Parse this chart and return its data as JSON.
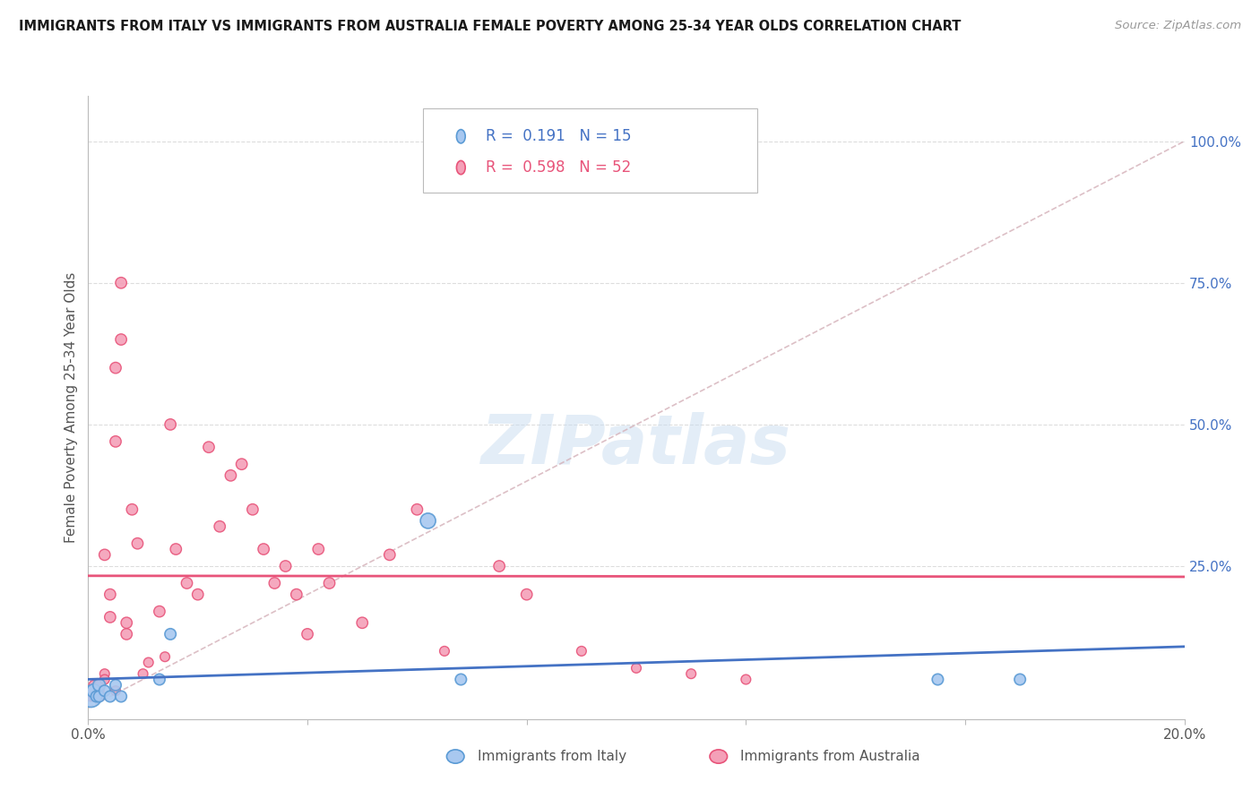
{
  "title": "IMMIGRANTS FROM ITALY VS IMMIGRANTS FROM AUSTRALIA FEMALE POVERTY AMONG 25-34 YEAR OLDS CORRELATION CHART",
  "source": "Source: ZipAtlas.com",
  "ylabel": "Female Poverty Among 25-34 Year Olds",
  "legend_italy": "Immigrants from Italy",
  "legend_australia": "Immigrants from Australia",
  "R_italy": "0.191",
  "N_italy": "15",
  "R_australia": "0.598",
  "N_australia": "52",
  "xlim": [
    0.0,
    0.2
  ],
  "ylim": [
    -0.02,
    1.08
  ],
  "yticks_right": [
    0.25,
    0.5,
    0.75,
    1.0
  ],
  "ytick_labels_right": [
    "25.0%",
    "50.0%",
    "75.0%",
    "100.0%"
  ],
  "color_italy_fill": "#A8C8F0",
  "color_italy_edge": "#5B9BD5",
  "color_australia_fill": "#F4A0B8",
  "color_australia_edge": "#E8547A",
  "color_italy_line": "#4472C4",
  "color_australia_line": "#E8547A",
  "color_diag": "#D4B0B8",
  "background": "#FFFFFF",
  "watermark": "ZIPatlas",
  "italy_x": [
    0.0005,
    0.001,
    0.0015,
    0.002,
    0.002,
    0.003,
    0.004,
    0.005,
    0.006,
    0.013,
    0.015,
    0.062,
    0.068,
    0.155,
    0.17
  ],
  "italy_y": [
    0.02,
    0.03,
    0.02,
    0.04,
    0.02,
    0.03,
    0.02,
    0.04,
    0.02,
    0.05,
    0.13,
    0.33,
    0.05,
    0.05,
    0.05
  ],
  "italy_sizes": [
    300,
    120,
    80,
    100,
    80,
    80,
    80,
    80,
    80,
    80,
    80,
    150,
    80,
    80,
    80
  ],
  "australia_x": [
    0.0005,
    0.001,
    0.001,
    0.001,
    0.002,
    0.002,
    0.002,
    0.003,
    0.003,
    0.003,
    0.004,
    0.004,
    0.005,
    0.005,
    0.005,
    0.006,
    0.006,
    0.007,
    0.007,
    0.008,
    0.009,
    0.01,
    0.011,
    0.013,
    0.014,
    0.015,
    0.016,
    0.018,
    0.02,
    0.022,
    0.024,
    0.026,
    0.028,
    0.03,
    0.032,
    0.034,
    0.036,
    0.038,
    0.04,
    0.042,
    0.044,
    0.05,
    0.055,
    0.06,
    0.065,
    0.07,
    0.075,
    0.08,
    0.09,
    0.1,
    0.11,
    0.12
  ],
  "australia_y": [
    0.02,
    0.03,
    0.04,
    0.02,
    0.03,
    0.04,
    0.02,
    0.27,
    0.06,
    0.05,
    0.16,
    0.2,
    0.6,
    0.47,
    0.03,
    0.75,
    0.65,
    0.13,
    0.15,
    0.35,
    0.29,
    0.06,
    0.08,
    0.17,
    0.09,
    0.5,
    0.28,
    0.22,
    0.2,
    0.46,
    0.32,
    0.41,
    0.43,
    0.35,
    0.28,
    0.22,
    0.25,
    0.2,
    0.13,
    0.28,
    0.22,
    0.15,
    0.27,
    0.35,
    0.1,
    0.99,
    0.25,
    0.2,
    0.1,
    0.07,
    0.06,
    0.05
  ],
  "australia_sizes": [
    60,
    60,
    60,
    60,
    60,
    60,
    60,
    80,
    60,
    60,
    80,
    80,
    80,
    80,
    60,
    80,
    80,
    80,
    80,
    80,
    80,
    60,
    60,
    80,
    60,
    80,
    80,
    80,
    80,
    80,
    80,
    80,
    80,
    80,
    80,
    80,
    80,
    80,
    80,
    80,
    80,
    80,
    80,
    80,
    60,
    100,
    80,
    80,
    60,
    60,
    60,
    60
  ]
}
